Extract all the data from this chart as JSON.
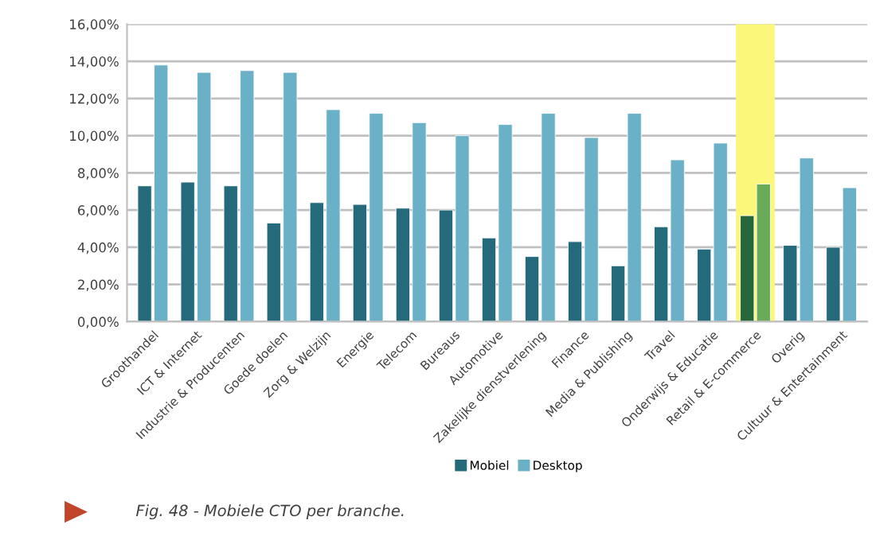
{
  "chart_data": {
    "type": "bar",
    "categories": [
      "Groothandel",
      "ICT & Internet",
      "Industrie & Producenten",
      "Goede doelen",
      "Zorg & Welzijn",
      "Energie",
      "Telecom",
      "Bureaus",
      "Automotive",
      "Zakelijke dienstverlening",
      "Finance",
      "Media & Publishing",
      "Travel",
      "Onderwijs & Educatie",
      "Retail & E-commerce",
      "Overig",
      "Cultuur & Entertainment"
    ],
    "series": [
      {
        "name": "Mobiel",
        "color": "#246a7a",
        "colors": [
          "#246a7a",
          "#246a7a",
          "#246a7a",
          "#246a7a",
          "#246a7a",
          "#246a7a",
          "#246a7a",
          "#246a7a",
          "#246a7a",
          "#246a7a",
          "#246a7a",
          "#246a7a",
          "#246a7a",
          "#246a7a",
          "#25663a",
          "#246a7a",
          "#246a7a"
        ],
        "values": [
          7.3,
          7.5,
          7.3,
          5.3,
          6.4,
          6.3,
          6.1,
          6.0,
          4.5,
          3.5,
          4.3,
          3.0,
          5.1,
          3.9,
          5.7,
          4.1,
          4.0
        ]
      },
      {
        "name": "Desktop",
        "color": "#6ab0c6",
        "colors": [
          "#6ab0c6",
          "#6ab0c6",
          "#6ab0c6",
          "#6ab0c6",
          "#6ab0c6",
          "#6ab0c6",
          "#6ab0c6",
          "#6ab0c6",
          "#6ab0c6",
          "#6ab0c6",
          "#6ab0c6",
          "#6ab0c6",
          "#6ab0c6",
          "#6ab0c6",
          "#6aab5a",
          "#6ab0c6",
          "#6ab0c6"
        ],
        "values": [
          13.8,
          13.4,
          13.5,
          13.4,
          11.4,
          11.2,
          10.7,
          10.0,
          10.6,
          11.2,
          9.9,
          11.2,
          8.7,
          9.6,
          7.4,
          8.8,
          7.2
        ]
      }
    ],
    "ylim": [
      0,
      16
    ],
    "yticks": [
      {
        "value": 0,
        "label": "0,00%"
      },
      {
        "value": 2,
        "label": "2,00%"
      },
      {
        "value": 4,
        "label": "4,00%"
      },
      {
        "value": 6,
        "label": "6,00%"
      },
      {
        "value": 8,
        "label": "8,00%"
      },
      {
        "value": 10,
        "label": "10,00%"
      },
      {
        "value": 12,
        "label": "12,00%"
      },
      {
        "value": 14,
        "label": "14,00%"
      },
      {
        "value": 16,
        "label": "16,00%"
      }
    ],
    "bands": [
      {
        "axis": "x",
        "from": "Retail & E-commerce",
        "to": "Retail & E-commerce",
        "color": "#fbf77a"
      }
    ],
    "grid": "y",
    "legend": "bottom",
    "annotations": [
      "Fig. 48 - Mobiele CTO per branche."
    ]
  }
}
